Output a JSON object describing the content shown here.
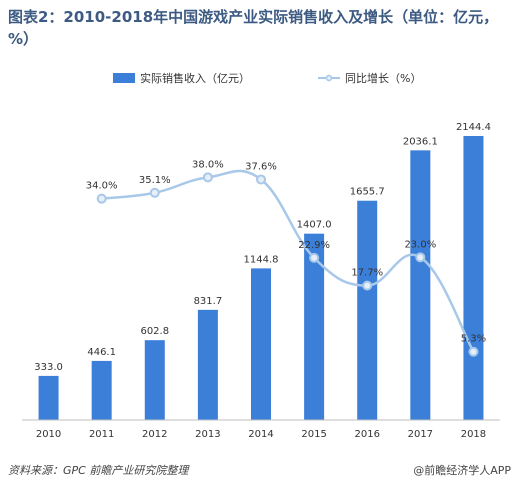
{
  "title": "图表2：2010-2018年中国游戏产业实际销售收入及增长（单位：亿元，%）",
  "footer": {
    "source": "资料来源：GPC 前瞻产业研究院整理",
    "brand": "@前瞻经济学人APP"
  },
  "colors": {
    "bar": "#3b7fd9",
    "line": "#a8c8ea",
    "marker_fill": "#e6eef8",
    "title": "#3c5a82"
  },
  "chart_data": {
    "type": "bar",
    "categories": [
      "2010",
      "2011",
      "2012",
      "2013",
      "2014",
      "2015",
      "2016",
      "2017",
      "2018"
    ],
    "series": [
      {
        "name": "实际销售收入（亿元）",
        "type": "bar",
        "values": [
          333.0,
          446.1,
          602.8,
          831.7,
          1144.8,
          1407.0,
          1655.7,
          2036.1,
          2144.4
        ],
        "labels": [
          "333.0",
          "446.1",
          "602.8",
          "831.7",
          "1144.8",
          "1407.0",
          "1655.7",
          "2036.1",
          "2144.4"
        ]
      },
      {
        "name": "同比增长（%）",
        "type": "line",
        "x": [
          "2011",
          "2012",
          "2013",
          "2014",
          "2015",
          "2016",
          "2017",
          "2018"
        ],
        "values": [
          34.0,
          35.1,
          38.0,
          37.6,
          22.9,
          17.7,
          23.0,
          5.3
        ],
        "labels": [
          "34.0%",
          "35.1%",
          "38.0%",
          "37.6%",
          "22.9%",
          "17.7%",
          "23.0%",
          "5.3%"
        ]
      }
    ],
    "legend_position": "top-center",
    "grid": false,
    "ylim_bar": [
      0,
      2400
    ],
    "ylim_line": [
      0,
      45
    ]
  }
}
